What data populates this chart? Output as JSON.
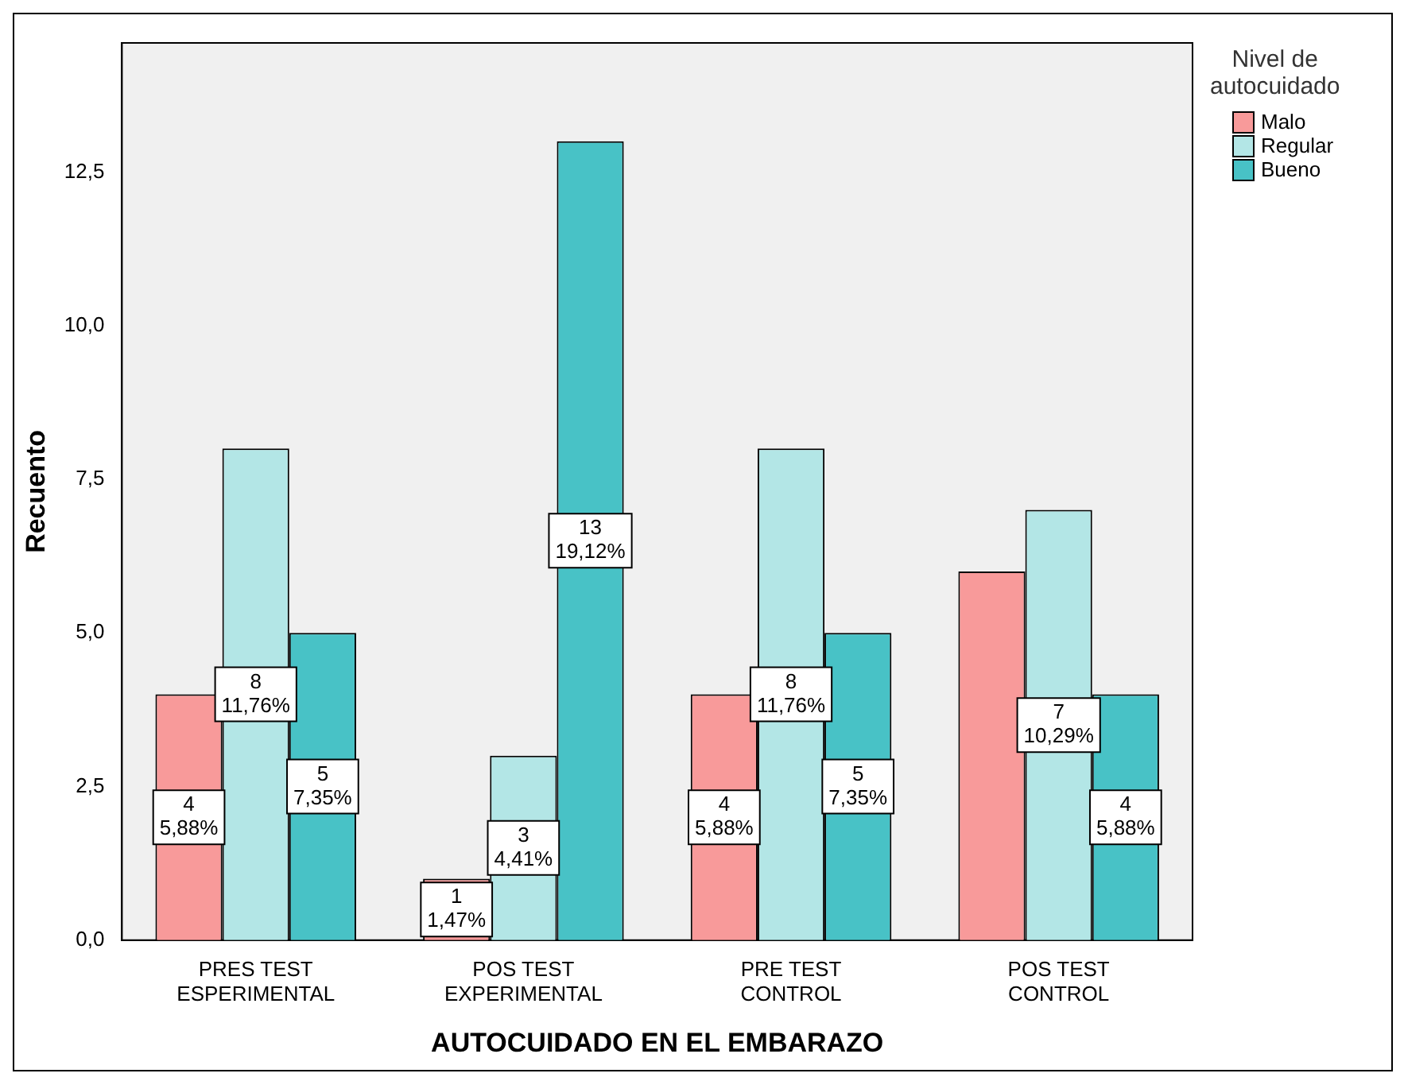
{
  "chart_data": {
    "type": "bar",
    "xlabel": "AUTOCUIDADO EN EL EMBARAZO",
    "ylabel": "Recuento",
    "legend_title": "Nivel de\nautocuidado",
    "legend": "top right",
    "grid": false,
    "categories": [
      "PRES TEST\nESPERIMENTAL",
      "POS TEST\nEXPERIMENTAL",
      "PRE TEST\nCONTROL",
      "POS TEST\nCONTROL"
    ],
    "ylim": [
      0,
      14.6
    ],
    "yticks": [
      {
        "value": 0,
        "label": "0,0"
      },
      {
        "value": 2.5,
        "label": "2,5"
      },
      {
        "value": 5,
        "label": "5,0"
      },
      {
        "value": 7.5,
        "label": "7,5"
      },
      {
        "value": 10,
        "label": "10,0"
      },
      {
        "value": 12.5,
        "label": "12,5"
      }
    ],
    "series": [
      {
        "name": "Malo",
        "color": "#f89a9a",
        "values": [
          4,
          1,
          4,
          6
        ],
        "value_labels": [
          "4\n5,88%",
          "1\n1,47%",
          "4\n5,88%",
          null
        ]
      },
      {
        "name": "Regular",
        "color": "#b3e6e6",
        "values": [
          8,
          3,
          8,
          7
        ],
        "value_labels": [
          "8\n11,76%",
          "3\n4,41%",
          "8\n11,76%",
          "7\n10,29%"
        ]
      },
      {
        "name": "Bueno",
        "color": "#48c2c6",
        "values": [
          5,
          13,
          5,
          4
        ],
        "value_labels": [
          "5\n7,35%",
          "13\n19,12%",
          "5\n7,35%",
          "4\n5,88%"
        ]
      }
    ]
  }
}
